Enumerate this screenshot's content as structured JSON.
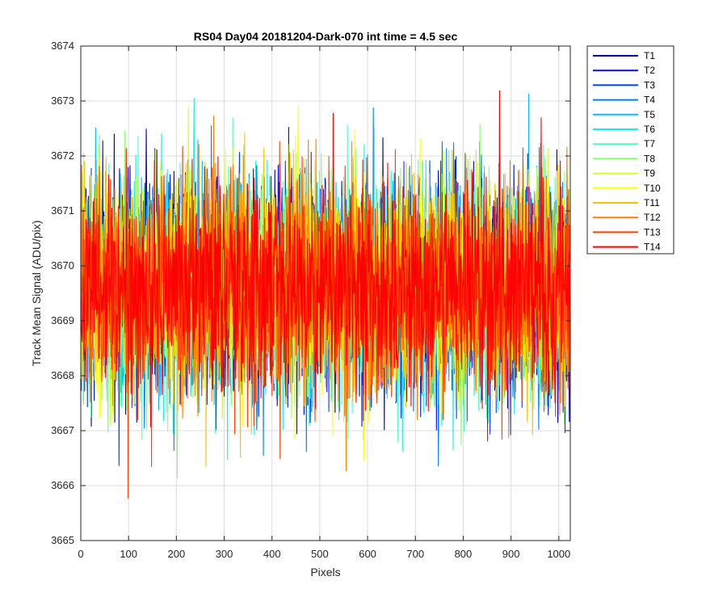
{
  "chart_data": {
    "type": "line",
    "title": "RS04 Day04 20181204-Dark-070 int time = 4.5 sec",
    "xlabel": "Pixels",
    "ylabel": "Track Mean Signal (ADU/pix)",
    "xlim": [
      0,
      1024
    ],
    "ylim": [
      3665,
      3674
    ],
    "xticks": [
      0,
      100,
      200,
      300,
      400,
      500,
      600,
      700,
      800,
      900,
      1000
    ],
    "yticks": [
      3665,
      3666,
      3667,
      3668,
      3669,
      3670,
      3671,
      3672,
      3673,
      3674
    ],
    "grid": true,
    "legend_position": "outside-right-top",
    "noise": {
      "mean": 3669.6,
      "typical_min": 3666.5,
      "typical_max": 3672.6,
      "n_points": 1024
    },
    "series": [
      {
        "name": "T1",
        "color": "#0000AA"
      },
      {
        "name": "T2",
        "color": "#0010D9"
      },
      {
        "name": "T3",
        "color": "#0040FF"
      },
      {
        "name": "T4",
        "color": "#0080FF"
      },
      {
        "name": "T5",
        "color": "#00BFFF"
      },
      {
        "name": "T6",
        "color": "#10F0F0"
      },
      {
        "name": "T7",
        "color": "#50FFC0"
      },
      {
        "name": "T8",
        "color": "#8FFF70"
      },
      {
        "name": "T9",
        "color": "#CFFF30"
      },
      {
        "name": "T10",
        "color": "#FFFF00"
      },
      {
        "name": "T11",
        "color": "#FFC000"
      },
      {
        "name": "T12",
        "color": "#FF8000"
      },
      {
        "name": "T13",
        "color": "#FF4000"
      },
      {
        "name": "T14",
        "color": "#FF0000"
      }
    ]
  }
}
